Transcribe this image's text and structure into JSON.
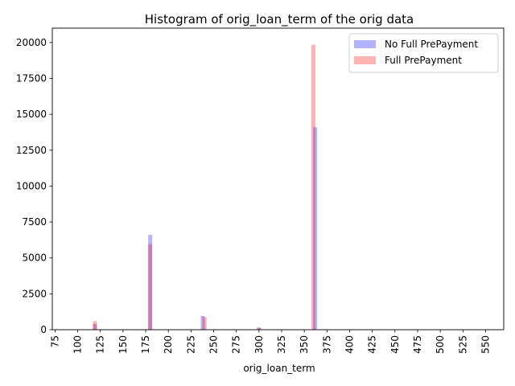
{
  "chart_data": {
    "type": "bar",
    "title": "Histogram of orig_loan_term of the orig data",
    "xlabel": "orig_loan_term",
    "ylabel": "",
    "xlim": [
      72,
      570
    ],
    "ylim": [
      0,
      21000
    ],
    "x_ticks": [
      75,
      100,
      125,
      150,
      175,
      200,
      225,
      250,
      275,
      300,
      325,
      350,
      375,
      400,
      425,
      450,
      475,
      500,
      525,
      550
    ],
    "y_ticks": [
      0,
      2500,
      5000,
      7500,
      10000,
      12500,
      15000,
      17500,
      20000
    ],
    "legend_position": "top-right",
    "series": [
      {
        "name": "No Full PrePayment",
        "color": "#0000ff",
        "opacity": 0.3,
        "bins": [
          {
            "x": 119,
            "value": 400
          },
          {
            "x": 180,
            "value": 6600
          },
          {
            "x": 238,
            "value": 950
          },
          {
            "x": 300,
            "value": 150
          },
          {
            "x": 362,
            "value": 14100
          }
        ]
      },
      {
        "name": "Full PrePayment",
        "color": "#ff0000",
        "opacity": 0.3,
        "bins": [
          {
            "x": 119,
            "value": 600
          },
          {
            "x": 180,
            "value": 5950
          },
          {
            "x": 240,
            "value": 880
          },
          {
            "x": 300,
            "value": 130
          },
          {
            "x": 360,
            "value": 19850
          }
        ]
      }
    ]
  }
}
